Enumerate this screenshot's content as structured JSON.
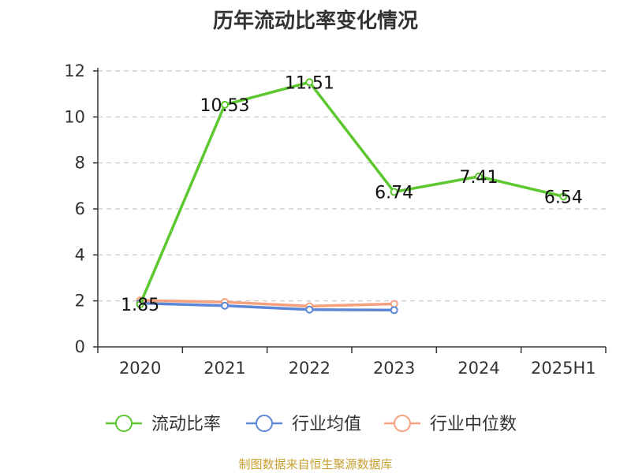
{
  "title": "历年流动比率变化情况",
  "source": "制图数据来自恒生聚源数据库",
  "colors": {
    "axis": "#333333",
    "grid": "#c8c8c8"
  },
  "chart_data": {
    "type": "line",
    "title": "历年流动比率变化情况",
    "categories": [
      "2020",
      "2021",
      "2022",
      "2023",
      "2024",
      "2025H1"
    ],
    "ylim": [
      0,
      12
    ],
    "yticks": [
      0,
      2,
      4,
      6,
      8,
      10,
      12
    ],
    "grid": true,
    "legend_position": "bottom",
    "series": [
      {
        "name": "流动比率",
        "color": "#5cc72e",
        "values": [
          1.85,
          10.53,
          11.51,
          6.74,
          7.41,
          6.54
        ],
        "show_labels": true
      },
      {
        "name": "行业均值",
        "color": "#5b87d6",
        "values": [
          1.9,
          1.79,
          1.62,
          1.6,
          null,
          null
        ],
        "show_labels": false
      },
      {
        "name": "行业中位数",
        "color": "#f5a17e",
        "values": [
          2.02,
          1.95,
          1.77,
          1.87,
          null,
          null
        ],
        "show_labels": false
      }
    ]
  }
}
